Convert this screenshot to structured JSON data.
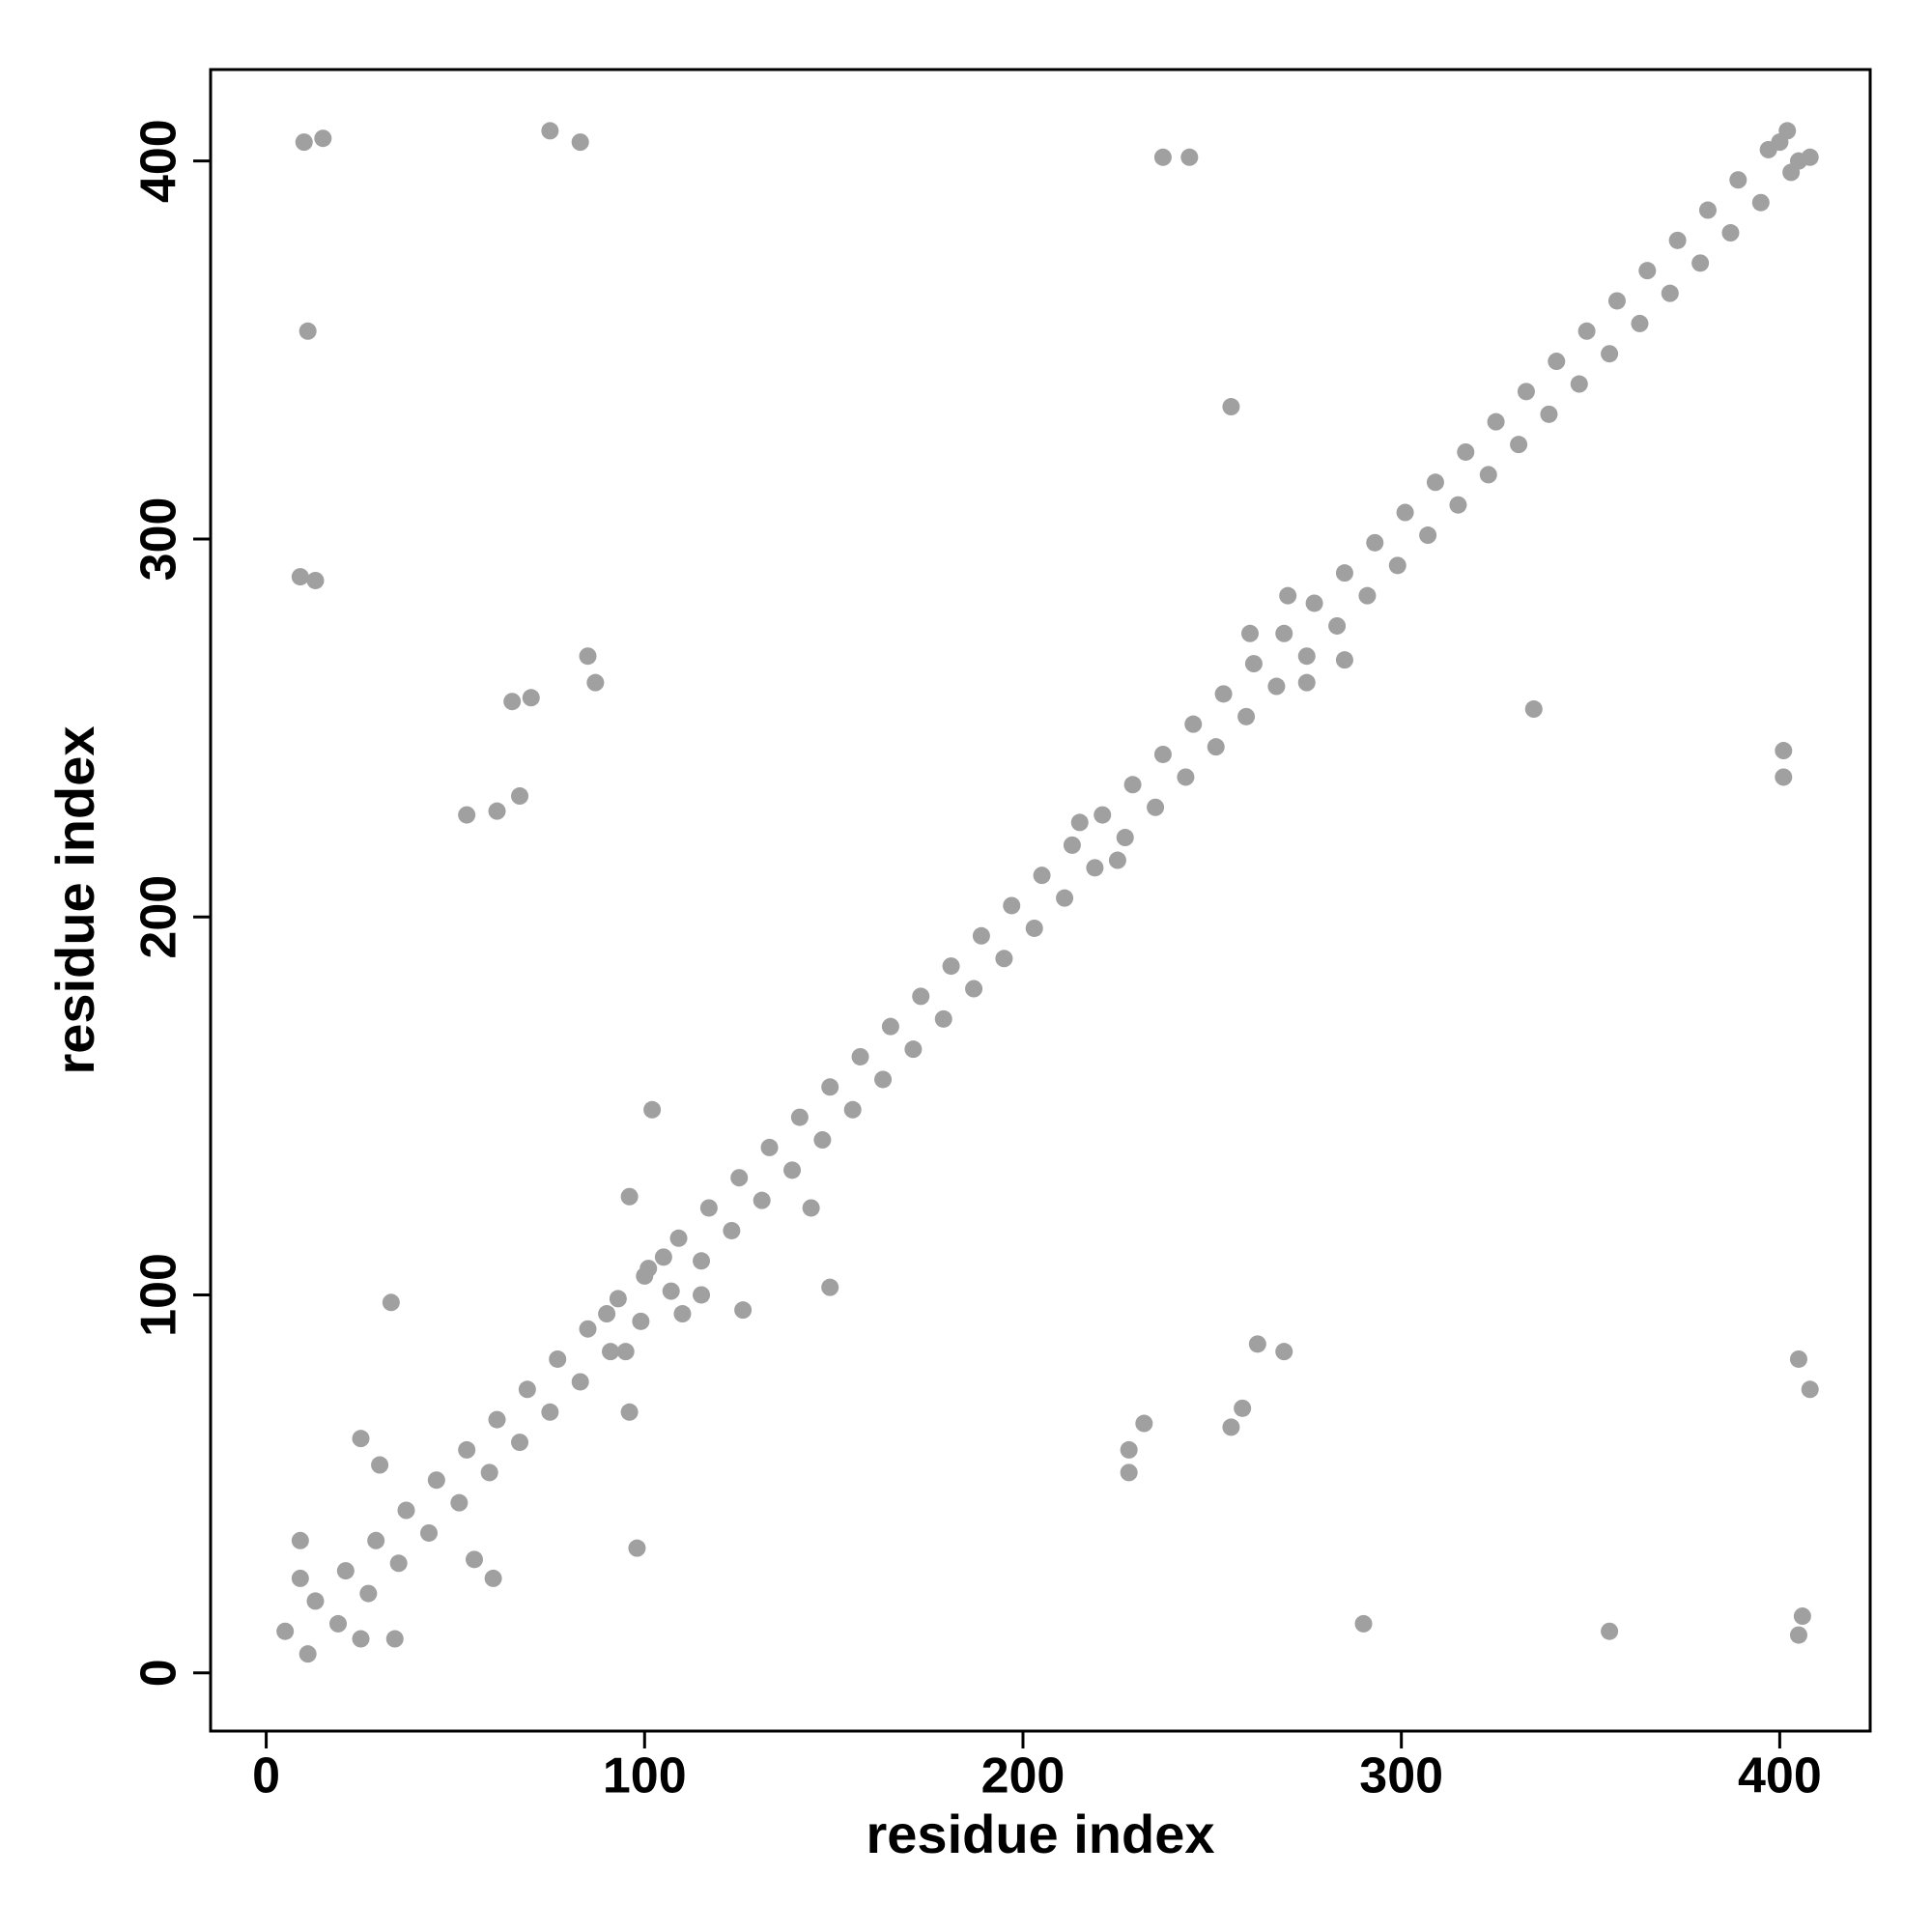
{
  "chart_data": {
    "type": "scatter",
    "xlabel": "residue index",
    "ylabel": "residue index",
    "color": "#a0a0a0",
    "xlim": [
      -14.7,
      423.9
    ],
    "ylim": [
      -15.4,
      424.2
    ],
    "xticks": [
      0,
      100,
      200,
      300,
      400
    ],
    "yticks": [
      0,
      100,
      200,
      300,
      400
    ],
    "x": [
      5,
      13,
      21,
      29,
      37,
      45,
      53,
      61,
      69,
      77,
      85,
      93,
      101,
      109,
      117,
      125,
      133,
      141,
      149,
      157,
      165,
      173,
      181,
      189,
      197,
      205,
      213,
      221,
      229,
      237,
      245,
      253,
      261,
      269,
      277,
      285,
      293,
      301,
      309,
      317,
      325,
      333,
      341,
      349,
      357,
      365,
      373,
      381,
      389,
      397,
      11,
      19,
      27,
      35,
      43,
      51,
      59,
      67,
      75,
      83,
      91,
      99,
      107,
      115,
      123,
      131,
      139,
      147,
      155,
      163,
      171,
      179,
      187,
      195,
      203,
      211,
      219,
      227,
      235,
      243,
      251,
      259,
      267,
      275,
      283,
      291,
      299,
      307,
      315,
      323,
      331,
      339,
      347,
      355,
      363,
      371,
      379,
      387,
      395,
      403,
      10,
      15,
      75,
      83,
      11,
      9,
      13,
      85,
      87,
      65,
      70,
      67,
      53,
      61,
      33,
      102,
      96,
      144,
      149,
      126,
      96,
      98,
      25,
      34,
      9,
      9,
      237,
      244,
      255,
      335,
      401,
      401,
      262,
      269,
      258,
      232,
      228,
      228,
      255,
      290,
      355,
      406,
      405,
      405,
      408,
      100,
      90,
      110,
      95,
      105,
      115,
      25,
      30,
      60,
      55,
      215,
      225,
      260,
      275,
      270,
      285,
      400,
      405,
      402,
      408
    ],
    "y": [
      11,
      19,
      27,
      35,
      43,
      51,
      59,
      67,
      75,
      83,
      91,
      99,
      107,
      115,
      123,
      131,
      139,
      147,
      155,
      163,
      171,
      179,
      187,
      195,
      203,
      211,
      219,
      227,
      235,
      243,
      251,
      259,
      267,
      275,
      283,
      291,
      299,
      307,
      315,
      323,
      331,
      339,
      347,
      355,
      363,
      371,
      379,
      387,
      395,
      403,
      5,
      13,
      21,
      29,
      37,
      45,
      53,
      61,
      69,
      77,
      85,
      93,
      101,
      109,
      117,
      125,
      133,
      141,
      149,
      157,
      165,
      173,
      181,
      189,
      197,
      205,
      213,
      221,
      229,
      237,
      245,
      253,
      261,
      269,
      277,
      285,
      293,
      301,
      309,
      317,
      325,
      333,
      341,
      349,
      357,
      365,
      373,
      381,
      389,
      397,
      405,
      406,
      408,
      405,
      355,
      290,
      289,
      269,
      262,
      257,
      258,
      232,
      227,
      228,
      98,
      149,
      126,
      123,
      102,
      96,
      69,
      33,
      9,
      9,
      35,
      25,
      401,
      401,
      335,
      255,
      244,
      237,
      87,
      85,
      70,
      66,
      59,
      53,
      65,
      13,
      11,
      15,
      10,
      83,
      75,
      105,
      95,
      95,
      85,
      110,
      100,
      62,
      55,
      25,
      30,
      225,
      215,
      275,
      262,
      285,
      268,
      405,
      400,
      408,
      401
    ]
  }
}
